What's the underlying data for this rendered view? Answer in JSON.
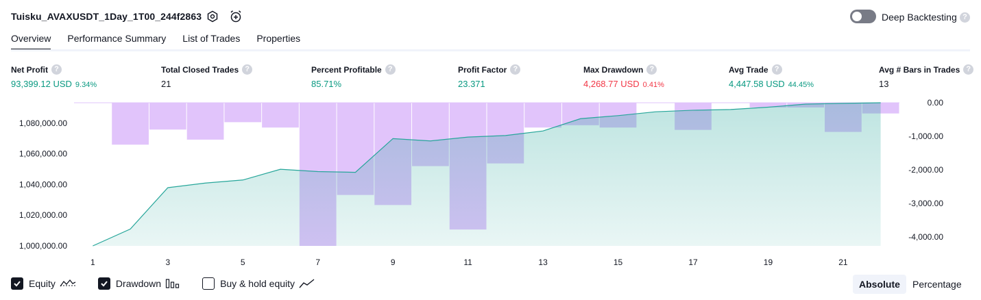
{
  "header": {
    "strategy_title": "Tuisku_AVAXUSDT_1Day_1T00_244f2863",
    "deep_backtesting_label": "Deep Backtesting",
    "deep_backtesting_enabled": false,
    "help_glyph": "?"
  },
  "tabs": [
    {
      "label": "Overview",
      "active": true
    },
    {
      "label": "Performance Summary",
      "active": false
    },
    {
      "label": "List of Trades",
      "active": false
    },
    {
      "label": "Properties",
      "active": false
    }
  ],
  "metrics": {
    "net_profit": {
      "label": "Net Profit",
      "value": "93,399.12 USD",
      "sub": "9.34%"
    },
    "total_closed_trades": {
      "label": "Total Closed Trades",
      "value": "21"
    },
    "percent_profitable": {
      "label": "Percent Profitable",
      "value": "85.71%"
    },
    "profit_factor": {
      "label": "Profit Factor",
      "value": "23.371"
    },
    "max_drawdown": {
      "label": "Max Drawdown",
      "value": "4,268.77 USD",
      "sub": "0.41%"
    },
    "avg_trade": {
      "label": "Avg Trade",
      "value": "4,447.58 USD",
      "sub": "44.45%"
    },
    "avg_bars": {
      "label": "Avg # Bars in Trades",
      "value": "13"
    }
  },
  "colors": {
    "positive": "#089981",
    "negative": "#f23645",
    "equity_line": "#26a69a",
    "drawdown_fill": "#e1c4fb"
  },
  "chart_data": {
    "type": "area",
    "x": [
      1,
      2,
      3,
      4,
      5,
      6,
      7,
      8,
      9,
      10,
      11,
      12,
      13,
      14,
      15,
      16,
      17,
      18,
      19,
      20,
      21,
      22
    ],
    "x_tick_labels": [
      "1",
      "3",
      "5",
      "7",
      "9",
      "11",
      "13",
      "15",
      "17",
      "19",
      "21"
    ],
    "y_left_ticks": [
      "1,000,000.00",
      "1,020,000.00",
      "1,040,000.00",
      "1,060,000.00",
      "1,080,000.00"
    ],
    "y_right_ticks": [
      "0.00",
      "-1,000.00",
      "-2,000.00",
      "-3,000.00",
      "-4,000.00"
    ],
    "ylim_left": [
      1000000,
      1093399
    ],
    "ylim_right": [
      -4268.77,
      0
    ],
    "grid": false,
    "series": [
      {
        "axis": "left",
        "values": [
          1000000,
          1011000,
          1038000,
          1041000,
          1043000,
          1050000,
          1048500,
          1048000,
          1070000,
          1068500,
          1071000,
          1072000,
          1075000,
          1083000,
          1085000,
          1087500,
          1088500,
          1089000,
          1090500,
          1092500,
          1093000,
          1093399
        ]
      },
      {
        "axis": "right",
        "values": [
          0,
          -1250,
          -800,
          -1100,
          -580,
          -740,
          -4268.77,
          -2750,
          -3050,
          -1890,
          -3780,
          -1810,
          -740,
          -670,
          -740,
          0,
          -810,
          0,
          -140,
          -140,
          -870,
          -320
        ]
      }
    ]
  },
  "legend": [
    {
      "label": "Equity",
      "checked": true,
      "icon": "equity-line-icon"
    },
    {
      "label": "Drawdown",
      "checked": true,
      "icon": "drawdown-bars-icon"
    },
    {
      "label": "Buy & hold equity",
      "checked": false,
      "icon": "buy-hold-line-icon"
    }
  ],
  "scale_toggle": {
    "absolute_label": "Absolute",
    "percentage_label": "Percentage",
    "selected": "Absolute"
  }
}
